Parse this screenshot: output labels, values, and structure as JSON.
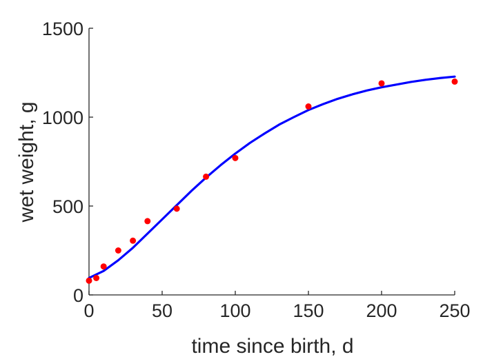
{
  "chart_data": {
    "type": "scatter",
    "title": "",
    "xlabel": "time since birth, d",
    "ylabel": "wet weight, g",
    "xlim": [
      0,
      250
    ],
    "ylim": [
      0,
      1500
    ],
    "xticks": [
      0,
      50,
      100,
      150,
      200,
      250
    ],
    "yticks": [
      0,
      500,
      1000,
      1500
    ],
    "grid": false,
    "series": [
      {
        "kind": "scatter",
        "color": "#ff0000",
        "x": [
          0,
          5,
          10,
          20,
          30,
          40,
          60,
          80,
          100,
          150,
          200,
          250
        ],
        "y": [
          80,
          95,
          160,
          250,
          305,
          415,
          485,
          665,
          770,
          1060,
          1190,
          1200
        ]
      },
      {
        "kind": "line",
        "color": "#0000ff",
        "x": [
          0,
          10,
          20,
          30,
          40,
          50,
          60,
          70,
          80,
          90,
          100,
          110,
          120,
          130,
          140,
          150,
          160,
          170,
          180,
          190,
          200,
          210,
          220,
          230,
          240,
          250
        ],
        "y": [
          95,
          135,
          195,
          265,
          345,
          425,
          505,
          585,
          660,
          730,
          795,
          855,
          908,
          958,
          1000,
          1040,
          1073,
          1103,
          1128,
          1150,
          1168,
          1183,
          1198,
          1210,
          1220,
          1228
        ]
      }
    ]
  }
}
